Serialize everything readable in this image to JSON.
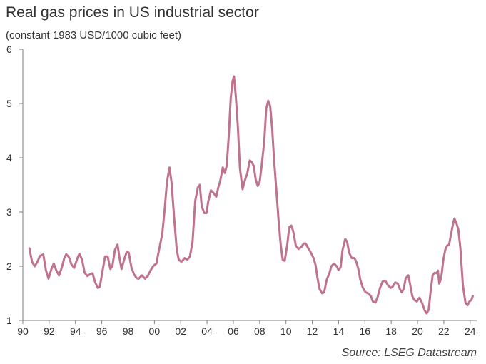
{
  "chart_data": {
    "type": "line",
    "title": "Real gas prices in US industrial sector",
    "subtitle": "(constant 1983 USD/1000 cubic feet)",
    "source": "Source: LSEG Datastream",
    "xlabel": "",
    "ylabel": "",
    "xlim": [
      1990,
      2024.5
    ],
    "ylim": [
      1,
      6
    ],
    "x_ticks": [
      1990,
      1992,
      1994,
      1996,
      1998,
      2000,
      2002,
      2004,
      2006,
      2008,
      2010,
      2012,
      2014,
      2016,
      2018,
      2020,
      2022,
      2024
    ],
    "x_tick_labels": [
      "90",
      "92",
      "94",
      "96",
      "98",
      "00",
      "02",
      "04",
      "06",
      "08",
      "10",
      "12",
      "14",
      "16",
      "18",
      "20",
      "22",
      "24"
    ],
    "y_ticks": [
      1,
      2,
      3,
      4,
      5,
      6
    ],
    "y_tick_labels": [
      "1",
      "2",
      "3",
      "4",
      "5",
      "6"
    ],
    "grid": false,
    "line_color": "#c0738c",
    "axis_color": "#7f7f7f",
    "series": [
      {
        "values": [
          [
            1990.5,
            2.33
          ],
          [
            1990.7,
            2.08
          ],
          [
            1990.9,
            2.0
          ],
          [
            1991.1,
            2.08
          ],
          [
            1991.3,
            2.19
          ],
          [
            1991.55,
            2.22
          ],
          [
            1991.75,
            1.93
          ],
          [
            1991.95,
            1.77
          ],
          [
            1992.15,
            1.93
          ],
          [
            1992.35,
            2.05
          ],
          [
            1992.55,
            1.92
          ],
          [
            1992.75,
            1.83
          ],
          [
            1992.95,
            1.97
          ],
          [
            1993.15,
            2.15
          ],
          [
            1993.3,
            2.22
          ],
          [
            1993.5,
            2.17
          ],
          [
            1993.7,
            2.03
          ],
          [
            1993.9,
            1.97
          ],
          [
            1994.15,
            2.15
          ],
          [
            1994.3,
            2.23
          ],
          [
            1994.5,
            2.12
          ],
          [
            1994.7,
            1.88
          ],
          [
            1994.9,
            1.82
          ],
          [
            1995.1,
            1.85
          ],
          [
            1995.3,
            1.87
          ],
          [
            1995.5,
            1.7
          ],
          [
            1995.7,
            1.6
          ],
          [
            1995.85,
            1.62
          ],
          [
            1996.05,
            1.9
          ],
          [
            1996.25,
            2.18
          ],
          [
            1996.45,
            2.18
          ],
          [
            1996.65,
            1.95
          ],
          [
            1996.8,
            2.0
          ],
          [
            1997.0,
            2.3
          ],
          [
            1997.2,
            2.4
          ],
          [
            1997.35,
            2.15
          ],
          [
            1997.5,
            1.95
          ],
          [
            1997.7,
            2.12
          ],
          [
            1997.9,
            2.27
          ],
          [
            1998.05,
            2.25
          ],
          [
            1998.25,
            1.98
          ],
          [
            1998.45,
            1.85
          ],
          [
            1998.65,
            1.78
          ],
          [
            1998.8,
            1.77
          ],
          [
            1999.05,
            1.83
          ],
          [
            1999.3,
            1.77
          ],
          [
            1999.5,
            1.82
          ],
          [
            1999.7,
            1.92
          ],
          [
            1999.9,
            2.0
          ],
          [
            2000.15,
            2.05
          ],
          [
            2000.35,
            2.3
          ],
          [
            2000.6,
            2.6
          ],
          [
            2000.8,
            3.1
          ],
          [
            2000.95,
            3.55
          ],
          [
            2001.15,
            3.82
          ],
          [
            2001.3,
            3.55
          ],
          [
            2001.5,
            2.9
          ],
          [
            2001.7,
            2.3
          ],
          [
            2001.85,
            2.12
          ],
          [
            2002.05,
            2.08
          ],
          [
            2002.3,
            2.15
          ],
          [
            2002.5,
            2.12
          ],
          [
            2002.7,
            2.18
          ],
          [
            2002.9,
            2.45
          ],
          [
            2003.1,
            3.2
          ],
          [
            2003.3,
            3.45
          ],
          [
            2003.45,
            3.5
          ],
          [
            2003.6,
            3.1
          ],
          [
            2003.8,
            2.98
          ],
          [
            2003.95,
            2.98
          ],
          [
            2004.1,
            3.2
          ],
          [
            2004.3,
            3.4
          ],
          [
            2004.5,
            3.35
          ],
          [
            2004.7,
            3.28
          ],
          [
            2004.85,
            3.45
          ],
          [
            2005.0,
            3.57
          ],
          [
            2005.2,
            3.82
          ],
          [
            2005.35,
            3.72
          ],
          [
            2005.5,
            3.85
          ],
          [
            2005.65,
            4.4
          ],
          [
            2005.8,
            5.1
          ],
          [
            2005.95,
            5.42
          ],
          [
            2006.05,
            5.5
          ],
          [
            2006.2,
            5.1
          ],
          [
            2006.35,
            4.55
          ],
          [
            2006.5,
            3.8
          ],
          [
            2006.7,
            3.42
          ],
          [
            2006.9,
            3.6
          ],
          [
            2007.05,
            3.7
          ],
          [
            2007.25,
            3.95
          ],
          [
            2007.4,
            3.92
          ],
          [
            2007.55,
            3.85
          ],
          [
            2007.7,
            3.6
          ],
          [
            2007.85,
            3.48
          ],
          [
            2008.0,
            3.55
          ],
          [
            2008.15,
            3.85
          ],
          [
            2008.35,
            4.3
          ],
          [
            2008.5,
            4.9
          ],
          [
            2008.65,
            5.05
          ],
          [
            2008.8,
            4.95
          ],
          [
            2008.95,
            4.55
          ],
          [
            2009.1,
            3.95
          ],
          [
            2009.3,
            3.3
          ],
          [
            2009.45,
            2.8
          ],
          [
            2009.6,
            2.4
          ],
          [
            2009.75,
            2.12
          ],
          [
            2009.9,
            2.1
          ],
          [
            2010.1,
            2.4
          ],
          [
            2010.25,
            2.72
          ],
          [
            2010.4,
            2.75
          ],
          [
            2010.55,
            2.65
          ],
          [
            2010.75,
            2.38
          ],
          [
            2010.95,
            2.32
          ],
          [
            2011.15,
            2.35
          ],
          [
            2011.35,
            2.42
          ],
          [
            2011.5,
            2.42
          ],
          [
            2011.7,
            2.33
          ],
          [
            2011.9,
            2.25
          ],
          [
            2012.1,
            2.15
          ],
          [
            2012.25,
            2.02
          ],
          [
            2012.4,
            1.78
          ],
          [
            2012.55,
            1.58
          ],
          [
            2012.75,
            1.5
          ],
          [
            2012.9,
            1.52
          ],
          [
            2013.1,
            1.75
          ],
          [
            2013.3,
            1.87
          ],
          [
            2013.45,
            2.0
          ],
          [
            2013.65,
            2.05
          ],
          [
            2013.85,
            2.0
          ],
          [
            2014.0,
            1.93
          ],
          [
            2014.15,
            1.98
          ],
          [
            2014.3,
            2.3
          ],
          [
            2014.5,
            2.5
          ],
          [
            2014.65,
            2.45
          ],
          [
            2014.8,
            2.25
          ],
          [
            2015.0,
            2.15
          ],
          [
            2015.2,
            2.15
          ],
          [
            2015.35,
            2.08
          ],
          [
            2015.5,
            1.95
          ],
          [
            2015.65,
            1.75
          ],
          [
            2015.85,
            1.6
          ],
          [
            2016.05,
            1.52
          ],
          [
            2016.25,
            1.5
          ],
          [
            2016.45,
            1.45
          ],
          [
            2016.6,
            1.35
          ],
          [
            2016.8,
            1.33
          ],
          [
            2016.95,
            1.42
          ],
          [
            2017.15,
            1.6
          ],
          [
            2017.35,
            1.72
          ],
          [
            2017.55,
            1.73
          ],
          [
            2017.75,
            1.65
          ],
          [
            2017.95,
            1.6
          ],
          [
            2018.1,
            1.62
          ],
          [
            2018.3,
            1.7
          ],
          [
            2018.5,
            1.68
          ],
          [
            2018.65,
            1.58
          ],
          [
            2018.8,
            1.52
          ],
          [
            2018.95,
            1.58
          ],
          [
            2019.1,
            1.78
          ],
          [
            2019.3,
            1.83
          ],
          [
            2019.45,
            1.65
          ],
          [
            2019.6,
            1.45
          ],
          [
            2019.75,
            1.38
          ],
          [
            2019.95,
            1.35
          ],
          [
            2020.15,
            1.42
          ],
          [
            2020.35,
            1.32
          ],
          [
            2020.55,
            1.18
          ],
          [
            2020.7,
            1.13
          ],
          [
            2020.85,
            1.2
          ],
          [
            2021.0,
            1.55
          ],
          [
            2021.15,
            1.83
          ],
          [
            2021.3,
            1.88
          ],
          [
            2021.45,
            1.87
          ],
          [
            2021.55,
            1.92
          ],
          [
            2021.65,
            1.68
          ],
          [
            2021.8,
            1.78
          ],
          [
            2021.95,
            2.1
          ],
          [
            2022.1,
            2.3
          ],
          [
            2022.25,
            2.38
          ],
          [
            2022.4,
            2.4
          ],
          [
            2022.55,
            2.6
          ],
          [
            2022.7,
            2.78
          ],
          [
            2022.8,
            2.88
          ],
          [
            2022.95,
            2.8
          ],
          [
            2023.1,
            2.68
          ],
          [
            2023.25,
            2.35
          ],
          [
            2023.45,
            1.65
          ],
          [
            2023.65,
            1.32
          ],
          [
            2023.8,
            1.28
          ],
          [
            2023.95,
            1.35
          ],
          [
            2024.1,
            1.38
          ],
          [
            2024.2,
            1.45
          ]
        ]
      }
    ]
  }
}
